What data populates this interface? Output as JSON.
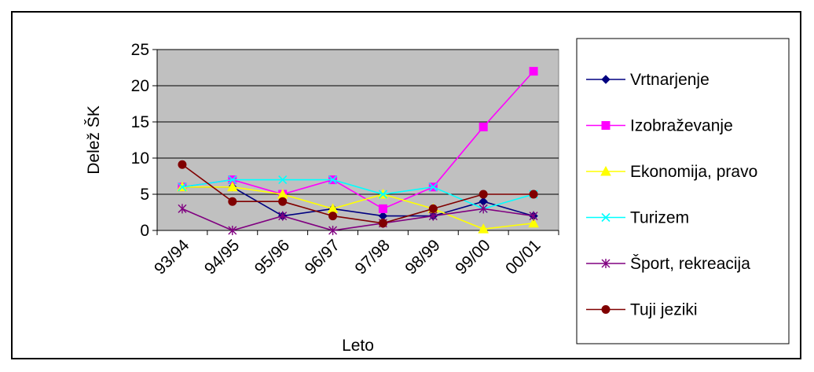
{
  "chart_data": {
    "type": "line",
    "xlabel": "Leto",
    "ylabel": "Delež ŠK",
    "categories": [
      "93/94",
      "94/95",
      "95/96",
      "96/97",
      "97/98",
      "98/99",
      "99/00",
      "00/01"
    ],
    "ylim": [
      0,
      25
    ],
    "yticks": [
      0,
      5,
      10,
      15,
      20,
      25
    ],
    "grid": true,
    "plot_background": "#c0c0c0",
    "legend_position": "right",
    "series": [
      {
        "name": "Vrtnarjenje",
        "color": "#000080",
        "marker": "diamond",
        "values": [
          6,
          6,
          2,
          3,
          2,
          2,
          4,
          2
        ]
      },
      {
        "name": "Izobraževanje",
        "color": "#ff00ff",
        "marker": "square",
        "values": [
          6,
          7,
          5,
          7,
          3,
          6,
          14.3,
          22
        ]
      },
      {
        "name": "Ekonomija, pravo",
        "color": "#ffff00",
        "marker": "triangle",
        "values": [
          6,
          6,
          5,
          3,
          5,
          3,
          0.2,
          1
        ]
      },
      {
        "name": "Turizem",
        "color": "#00ffff",
        "marker": "x",
        "values": [
          6,
          7,
          7,
          7,
          5,
          6,
          3,
          5
        ]
      },
      {
        "name": "Šport, rekreacija",
        "color": "#800080",
        "marker": "star",
        "values": [
          3,
          0,
          2,
          0,
          1,
          2,
          3,
          2
        ]
      },
      {
        "name": "Tuji jeziki",
        "color": "#800000",
        "marker": "circle",
        "values": [
          9.1,
          4,
          4,
          2,
          1,
          3,
          5,
          5
        ]
      }
    ]
  }
}
